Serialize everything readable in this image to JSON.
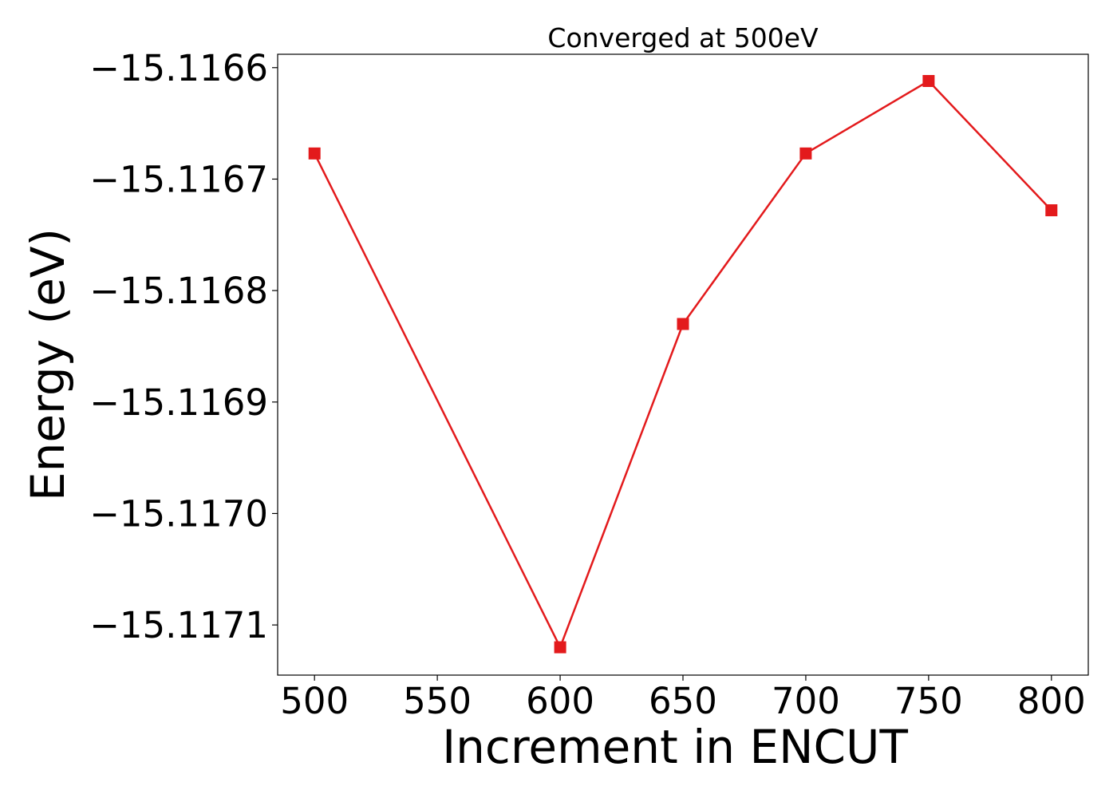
{
  "chart_data": {
    "type": "line",
    "title": "Converged at 500eV",
    "xlabel": "Increment in ENCUT",
    "ylabel": "Energy (eV)",
    "x": [
      500,
      600,
      650,
      700,
      750,
      800
    ],
    "series": [
      {
        "values": [
          -15.116677,
          -15.11712,
          -15.11683,
          -15.116677,
          -15.116612,
          -15.116728
        ],
        "color": "#e31a1c",
        "marker": "square"
      }
    ],
    "xticks": [
      500,
      550,
      600,
      650,
      700,
      750,
      800
    ],
    "xtick_labels": [
      "500",
      "550",
      "600",
      "650",
      "700",
      "750",
      "800"
    ],
    "yticks": [
      -15.1166,
      -15.1167,
      -15.1168,
      -15.1169,
      -15.117,
      -15.1171
    ],
    "ytick_labels": [
      "−15.1166",
      "−15.1167",
      "−15.1168",
      "−15.1169",
      "−15.1170",
      "−15.1171"
    ],
    "xlim": [
      485,
      815
    ],
    "ylim": [
      -15.117145,
      -15.116588
    ],
    "grid": false,
    "legend": "none"
  }
}
